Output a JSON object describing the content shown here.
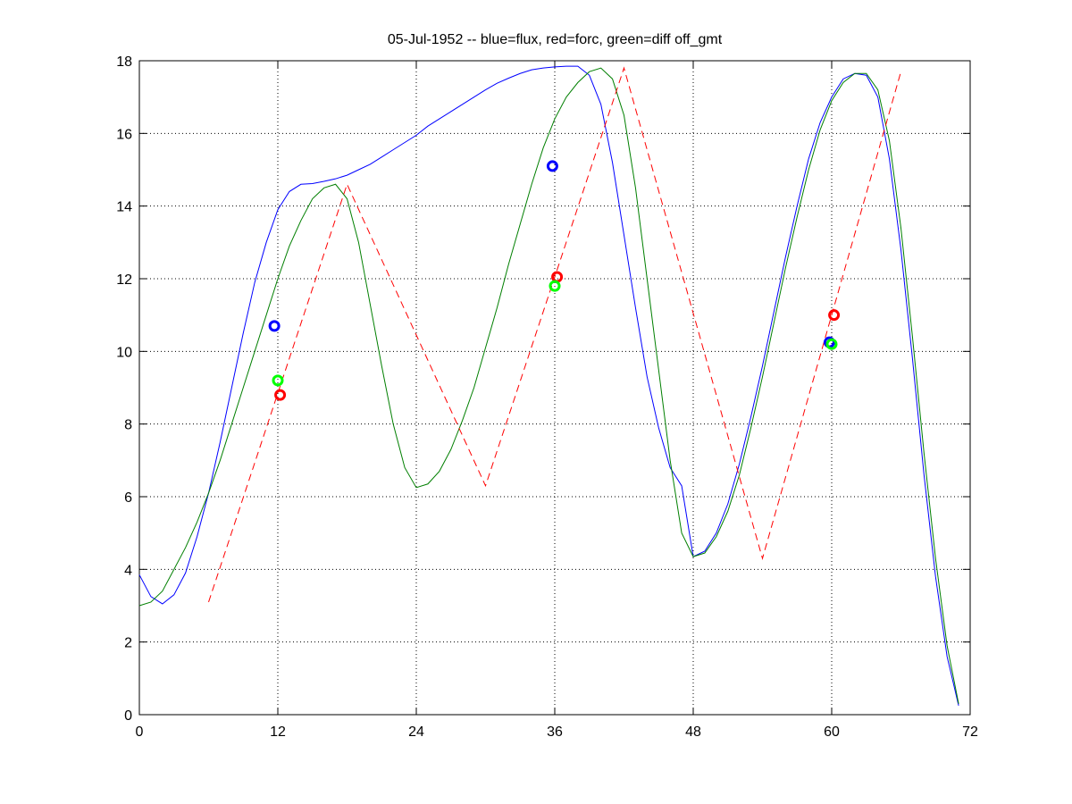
{
  "chart_data": {
    "type": "line",
    "title": "05-Jul-1952 -- blue=flux, red=forc, green=diff off_gmt",
    "xlim": [
      0,
      72
    ],
    "xticks": [
      0,
      12,
      24,
      36,
      48,
      60,
      72
    ],
    "ylim": [
      0,
      18
    ],
    "yticks": [
      0,
      2,
      4,
      6,
      8,
      10,
      12,
      14,
      16,
      18
    ],
    "grid": true,
    "series": [
      {
        "color": "#0000ff",
        "dash": false,
        "x": [
          0,
          1,
          2,
          3,
          4,
          5,
          6,
          7,
          8,
          9,
          10,
          11,
          12,
          13,
          14,
          15,
          16,
          17,
          18,
          19,
          20,
          21,
          22,
          23,
          24,
          25,
          26,
          27,
          28,
          29,
          30,
          31,
          32,
          33,
          34,
          35,
          36,
          37,
          38,
          39,
          40,
          41,
          42,
          43,
          44,
          45,
          46,
          47,
          48,
          49,
          50,
          51,
          52,
          53,
          54,
          55,
          56,
          57,
          58,
          59,
          60,
          61,
          62,
          63,
          64,
          65,
          66,
          67,
          68,
          69,
          70,
          71
        ],
        "values": [
          3.85,
          3.25,
          3.05,
          3.3,
          3.9,
          4.9,
          6.1,
          7.5,
          9.0,
          10.5,
          11.9,
          13.0,
          13.9,
          14.4,
          14.6,
          14.62,
          14.68,
          14.75,
          14.85,
          15.0,
          15.15,
          15.35,
          15.55,
          15.75,
          15.95,
          16.2,
          16.4,
          16.6,
          16.8,
          17.0,
          17.2,
          17.38,
          17.52,
          17.65,
          17.75,
          17.8,
          17.83,
          17.85,
          17.85,
          17.6,
          16.8,
          15.2,
          13.2,
          11.2,
          9.3,
          7.9,
          6.8,
          6.3,
          4.35,
          4.5,
          5.0,
          5.8,
          6.9,
          8.2,
          9.6,
          11.1,
          12.6,
          14.0,
          15.3,
          16.3,
          17.0,
          17.5,
          17.65,
          17.6,
          17.0,
          15.3,
          12.8,
          9.8,
          6.6,
          3.8,
          1.6,
          0.25
        ]
      },
      {
        "color": "#007f00",
        "dash": false,
        "x": [
          0,
          1,
          2,
          3,
          4,
          5,
          6,
          7,
          8,
          9,
          10,
          11,
          12,
          13,
          14,
          15,
          16,
          17,
          18,
          19,
          20,
          21,
          22,
          23,
          24,
          25,
          26,
          27,
          28,
          29,
          30,
          31,
          32,
          33,
          34,
          35,
          36,
          37,
          38,
          39,
          40,
          41,
          42,
          43,
          44,
          45,
          46,
          47,
          48,
          49,
          50,
          51,
          52,
          53,
          54,
          55,
          56,
          57,
          58,
          59,
          60,
          61,
          62,
          63,
          64,
          65,
          66,
          67,
          68,
          69,
          70,
          71
        ],
        "values": [
          3.0,
          3.1,
          3.4,
          4.0,
          4.6,
          5.3,
          6.1,
          7.0,
          8.0,
          9.0,
          10.0,
          11.0,
          12.0,
          12.9,
          13.6,
          14.2,
          14.5,
          14.6,
          14.2,
          13.0,
          11.3,
          9.6,
          8.0,
          6.8,
          6.25,
          6.35,
          6.7,
          7.3,
          8.1,
          9.0,
          10.1,
          11.2,
          12.4,
          13.5,
          14.6,
          15.6,
          16.4,
          17.0,
          17.4,
          17.7,
          17.8,
          17.5,
          16.5,
          14.5,
          12.0,
          9.5,
          7.0,
          5.0,
          4.35,
          4.45,
          4.9,
          5.6,
          6.6,
          7.9,
          9.3,
          10.8,
          12.3,
          13.7,
          15.0,
          16.1,
          16.9,
          17.4,
          17.65,
          17.65,
          17.2,
          15.8,
          13.4,
          10.4,
          7.2,
          4.3,
          1.9,
          0.3
        ]
      },
      {
        "color": "#ff0000",
        "dash": true,
        "x": [
          6,
          18,
          30,
          42,
          54,
          66
        ],
        "values": [
          3.1,
          14.6,
          6.3,
          17.8,
          4.3,
          17.7
        ]
      },
      {
        "color": "#0000ff",
        "marker": "o",
        "x": [
          11.7,
          35.8,
          59.8
        ],
        "values": [
          10.7,
          15.1,
          10.25
        ]
      },
      {
        "color": "#ff0000",
        "marker": "o",
        "x": [
          12.2,
          36.2,
          60.2
        ],
        "values": [
          8.8,
          12.05,
          11.0
        ]
      },
      {
        "color": "#00ff00",
        "marker": "o",
        "x": [
          12.0,
          36.0,
          60.0
        ],
        "values": [
          9.2,
          11.8,
          10.2
        ]
      }
    ]
  }
}
